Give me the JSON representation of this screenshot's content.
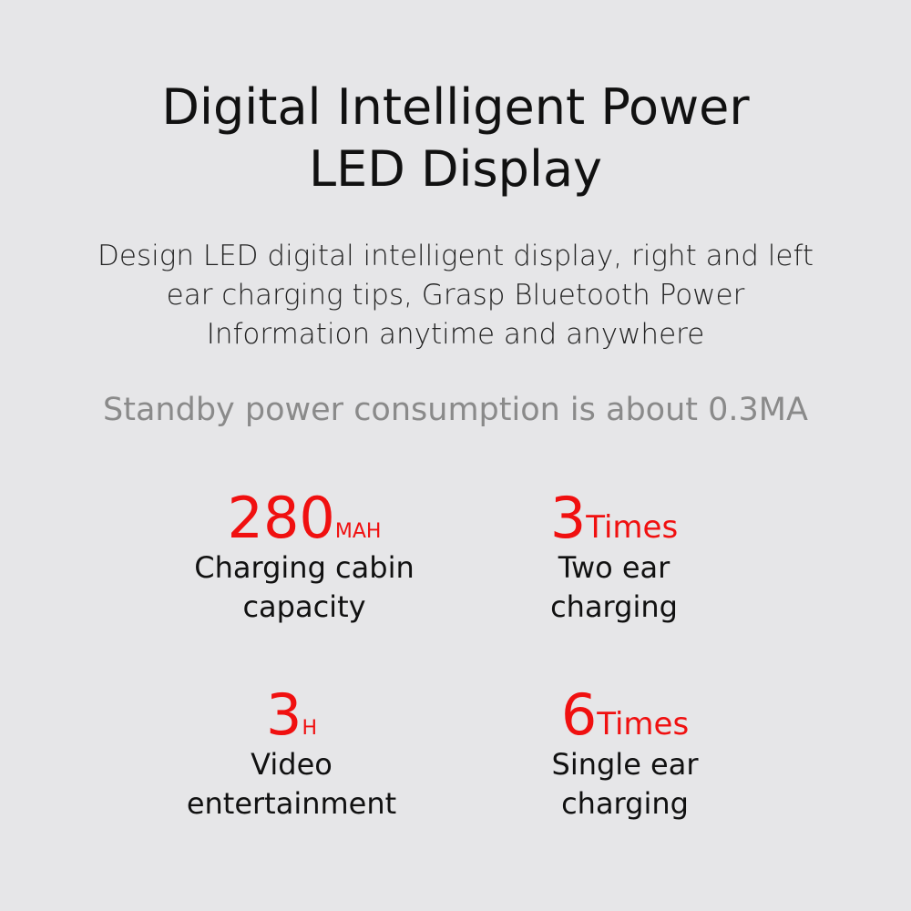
{
  "title": [
    "Digital Intelligent Power",
    "LED Display"
  ],
  "description": [
    "Design LED digital intelligent display, right and left",
    "ear charging tips, Grasp Bluetooth Power",
    "Information anytime and anywhere"
  ],
  "standby": "Standby power consumption is about 0.3MA",
  "stats": [
    {
      "value": "280",
      "unit": "MAH",
      "label": [
        "Charging cabin",
        "capacity"
      ]
    },
    {
      "value": "3",
      "unit": "Times",
      "label": [
        "Two ear",
        "charging"
      ]
    },
    {
      "value": "3",
      "unit": "H",
      "label": [
        "Video",
        "entertainment"
      ]
    },
    {
      "value": "6",
      "unit": "Times",
      "label": [
        "Single ear",
        "charging"
      ]
    }
  ],
  "accent_color": "#f01010"
}
